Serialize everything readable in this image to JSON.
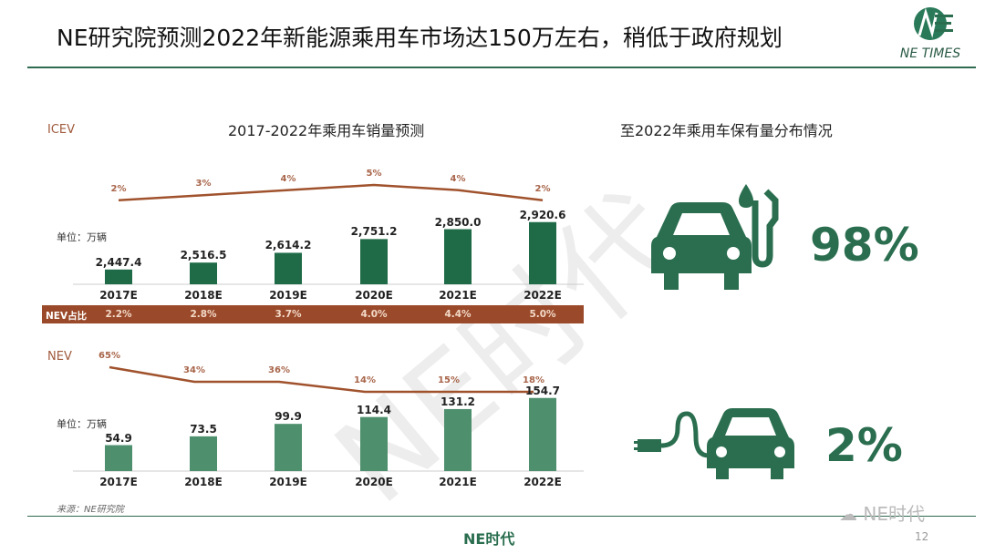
{
  "header": {
    "title": "NE研究院预测2022年新能源乘用车市场达150万左右，稍低于政府规划",
    "logo_text": "NE TIMES"
  },
  "colors": {
    "green": "#2a6e4f",
    "nev_green": "#4e8f6d",
    "brown": "#a0522d",
    "band": "#9a4a2a"
  },
  "chart_data": [
    {
      "type": "bar",
      "title": "2017-2022年乘用车销量预测",
      "section_label": "ICEV",
      "unit": "单位：万辆",
      "categories": [
        "2017E",
        "2018E",
        "2019E",
        "2020E",
        "2021E",
        "2022E"
      ],
      "values": [
        2447.4,
        2516.5,
        2614.2,
        2751.2,
        2850.0,
        2920.6
      ],
      "value_labels": [
        "2,447.4",
        "2,516.5",
        "2,614.2",
        "2,751.2",
        "2,850.0",
        "2,920.6"
      ],
      "ylim": [
        2300,
        3000
      ],
      "growth_line": {
        "values": [
          2,
          3,
          4,
          5,
          4,
          2
        ],
        "labels": [
          "2%",
          "3%",
          "4%",
          "5%",
          "4%",
          "2%"
        ]
      },
      "nev_share": {
        "label": "NEV占比",
        "values": [
          "2.2%",
          "2.8%",
          "3.7%",
          "4.0%",
          "4.4%",
          "5.0%"
        ]
      }
    },
    {
      "type": "bar",
      "section_label": "NEV",
      "unit": "单位：万辆",
      "categories": [
        "2017E",
        "2018E",
        "2019E",
        "2020E",
        "2021E",
        "2022E"
      ],
      "values": [
        54.9,
        73.5,
        99.9,
        114.4,
        131.2,
        154.7
      ],
      "value_labels": [
        "54.9",
        "73.5",
        "99.9",
        "114.4",
        "131.2",
        "154.7"
      ],
      "ylim": [
        0,
        160
      ],
      "growth_line": {
        "values": [
          65,
          34,
          36,
          14,
          15,
          18
        ],
        "labels": [
          "65%",
          "34%",
          "36%",
          "14%",
          "15%",
          "18%"
        ]
      }
    }
  ],
  "right": {
    "title": "至2022年乘用车保有量分布情况",
    "icev_icon": "fuel-car-icon",
    "icev_pct": "98%",
    "nev_icon": "electric-car-icon",
    "nev_pct": "2%"
  },
  "footer": {
    "source": "来源：NE研究院",
    "brand": "NE时代",
    "watermark": "NE时代",
    "page": "12"
  }
}
